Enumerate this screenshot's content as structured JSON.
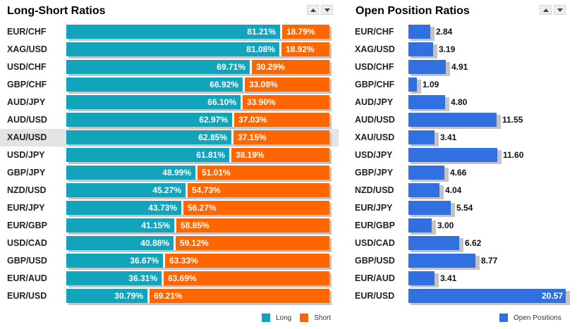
{
  "long_short": {
    "title": "Long-Short Ratios",
    "legend": [
      {
        "label": "Long",
        "color": "#12a4bb"
      },
      {
        "label": "Short",
        "color": "#ff6600"
      }
    ],
    "highlighted_pair": "XAU/USD"
  },
  "open_positions": {
    "title": "Open Position Ratios",
    "legend": [
      {
        "label": "Open Positions",
        "color": "#3170e0"
      }
    ],
    "highlighted_pair": "XAU/USD"
  },
  "chart_data": [
    {
      "type": "bar",
      "stacked": true,
      "orientation": "horizontal",
      "title": "Long-Short Ratios",
      "categories": [
        "EUR/CHF",
        "XAG/USD",
        "USD/CHF",
        "GBP/CHF",
        "AUD/JPY",
        "AUD/USD",
        "XAU/USD",
        "USD/JPY",
        "GBP/JPY",
        "NZD/USD",
        "EUR/JPY",
        "EUR/GBP",
        "USD/CAD",
        "GBP/USD",
        "EUR/AUD",
        "EUR/USD"
      ],
      "series": [
        {
          "name": "Long",
          "color": "#12a4bb",
          "values": [
            81.21,
            81.08,
            69.71,
            66.92,
            66.1,
            62.97,
            62.85,
            61.81,
            48.99,
            45.27,
            43.73,
            41.15,
            40.88,
            36.67,
            36.31,
            30.79
          ]
        },
        {
          "name": "Short",
          "color": "#ff6600",
          "values": [
            18.79,
            18.92,
            30.29,
            33.08,
            33.9,
            37.03,
            37.15,
            38.19,
            51.01,
            54.73,
            56.27,
            58.85,
            59.12,
            63.33,
            63.69,
            69.21
          ]
        }
      ],
      "value_labels": {
        "Long": [
          "81.21%",
          "81.08%",
          "69.71%",
          "66.92%",
          "66.10%",
          "62.97%",
          "62.85%",
          "61.81%",
          "48.99%",
          "45.27%",
          "43.73%",
          "41.15%",
          "40.88%",
          "36.67%",
          "36.31%",
          "30.79%"
        ],
        "Short": [
          "18.79%",
          "18.92%",
          "30.29%",
          "33.08%",
          "33.90%",
          "37.03%",
          "37.15%",
          "38.19%",
          "51.01%",
          "54.73%",
          "56.27%",
          "58.85%",
          "59.12%",
          "63.33%",
          "63.69%",
          "69.21%"
        ]
      },
      "xlim": [
        0,
        100
      ],
      "legend_position": "bottom-right"
    },
    {
      "type": "bar",
      "orientation": "horizontal",
      "title": "Open Position Ratios",
      "categories": [
        "EUR/CHF",
        "XAG/USD",
        "USD/CHF",
        "GBP/CHF",
        "AUD/JPY",
        "AUD/USD",
        "XAU/USD",
        "USD/JPY",
        "GBP/JPY",
        "NZD/USD",
        "EUR/JPY",
        "EUR/GBP",
        "USD/CAD",
        "GBP/USD",
        "EUR/AUD",
        "EUR/USD"
      ],
      "series": [
        {
          "name": "Open Positions",
          "color": "#3170e0",
          "values": [
            2.84,
            3.19,
            4.91,
            1.09,
            4.8,
            11.55,
            3.41,
            11.6,
            4.66,
            4.04,
            5.54,
            3.0,
            6.62,
            8.77,
            3.41,
            20.57
          ]
        }
      ],
      "value_labels": [
        "2.84",
        "3.19",
        "4.91",
        "1.09",
        "4.80",
        "11.55",
        "3.41",
        "11.60",
        "4.66",
        "4.04",
        "5.54",
        "3.00",
        "6.62",
        "8.77",
        "3.41",
        "20.57"
      ],
      "xlim": [
        0,
        20.57
      ],
      "legend_position": "bottom-right"
    }
  ]
}
